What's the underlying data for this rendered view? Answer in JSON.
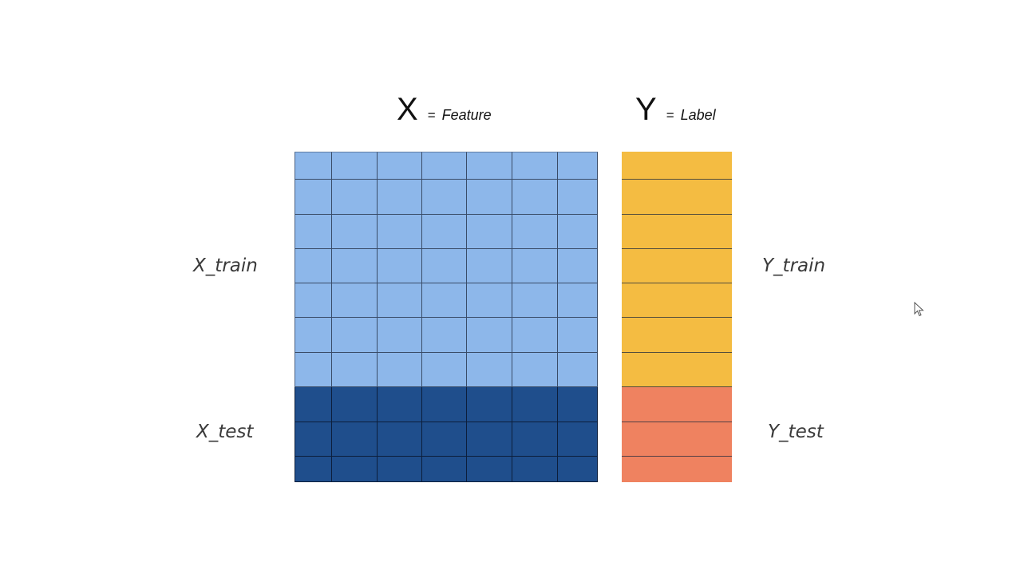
{
  "header": {
    "x_letter": "X",
    "x_equals": "=",
    "x_word": "Feature",
    "y_letter": "Y",
    "y_equals": "=",
    "y_word": "Label"
  },
  "labels": {
    "x_train": "X_train",
    "x_test": "X_test",
    "y_train": "Y_train",
    "y_test": "Y_test"
  },
  "colors": {
    "x_train": "#8db7ea",
    "x_test": "#1f4e8c",
    "y_train": "#f4bc42",
    "y_test": "#ef8260"
  },
  "grid": {
    "feature_columns": 7,
    "train_rows": 7,
    "test_rows": 3
  },
  "icons": {
    "cursor": "mouse-pointer-icon"
  }
}
